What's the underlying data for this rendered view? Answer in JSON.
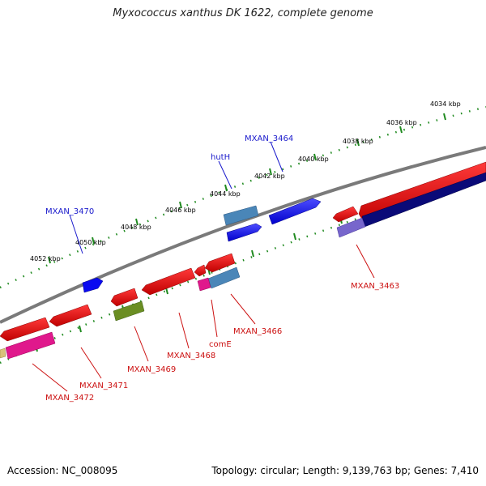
{
  "title": "Myxococcus xanthus DK 1622, complete genome",
  "footer": {
    "accession": "Accession: NC_008095",
    "summary": "Topology: circular; Length: 9,139,763 bp; Genes: 7,410"
  },
  "ticks": [
    "4034 kbp",
    "4036 kbp",
    "4038 kbp",
    "4040 kbp",
    "4042 kbp",
    "4044 kbp",
    "4046 kbp",
    "4048 kbp",
    "4050 kbp",
    "4052 kbp"
  ],
  "upper_labels": [
    "MXAN_3470",
    "hutH",
    "MXAN_3464"
  ],
  "lower_labels": [
    "MXAN_3463",
    "MXAN_3466",
    "comE",
    "MXAN_3468",
    "MXAN_3469",
    "MXAN_3471",
    "MXAN_3472"
  ],
  "colors": {
    "backbone": "#7a7a7a",
    "dots": "#1f8a1f",
    "forward_cds": "#0a0af0",
    "forward_cds_light": "#4a86b8",
    "reverse_cds": "#e01010",
    "reverse_cds_dark": "#0a0a78",
    "olive": "#6b8e23",
    "magenta": "#e0188c",
    "violet": "#7766cc"
  }
}
